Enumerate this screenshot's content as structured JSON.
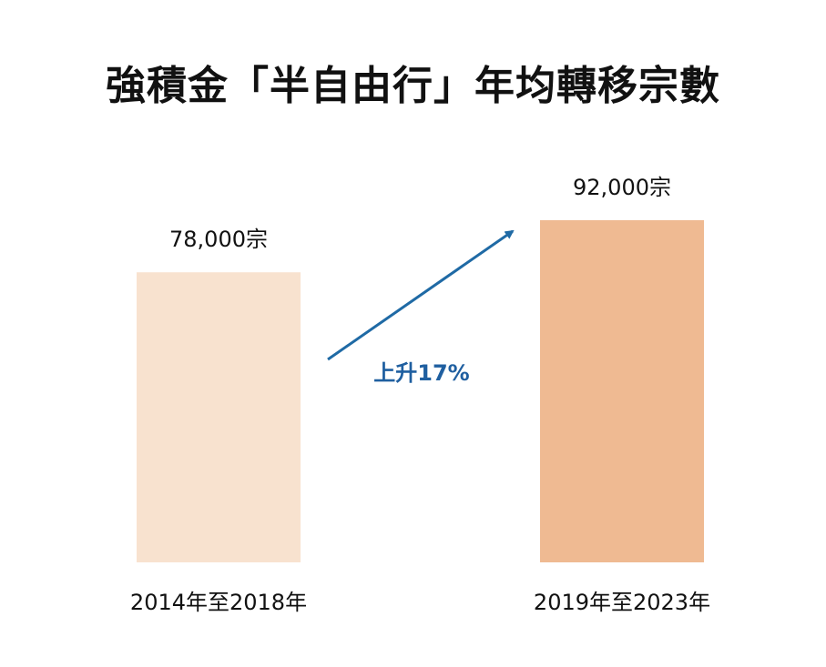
{
  "chart_data": {
    "type": "bar",
    "title": "強積金「半自由行」年均轉移宗數",
    "categories": [
      "2014年至2018年",
      "2019年至2023年"
    ],
    "values": [
      78000,
      92000
    ],
    "value_labels": [
      "78,000宗",
      "92,000宗"
    ],
    "annotation": "上升17%",
    "colors": {
      "bars": [
        "#f8e2cf",
        "#efba92"
      ],
      "arrow": "#1f6aa5",
      "annotation": "#1f5fa0"
    },
    "grid": false,
    "axes_visible": false
  }
}
